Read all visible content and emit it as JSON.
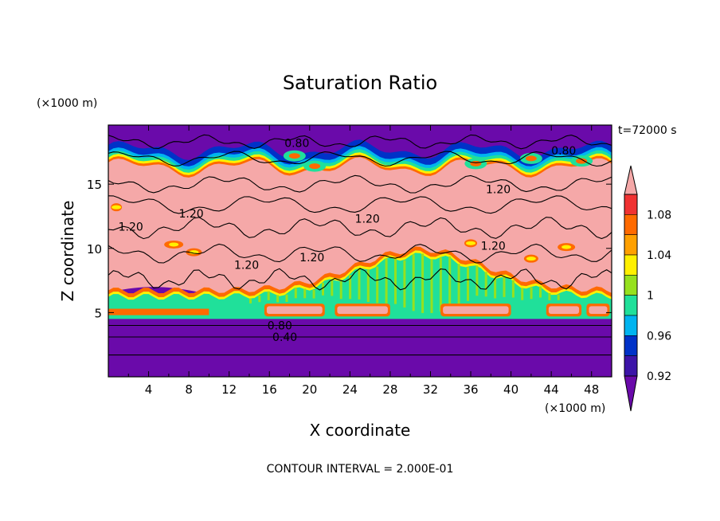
{
  "chart_data": {
    "type": "heatmap",
    "title": "Saturation Ratio",
    "xlabel": "X coordinate",
    "ylabel": "Z coordinate",
    "x_units": "(×1000 m)",
    "y_units": "(×1000 m)",
    "time_label": "t=72000 s",
    "footer": "CONTOUR INTERVAL = 2.000E-01",
    "xlim": [
      0,
      50
    ],
    "ylim": [
      0,
      19.6
    ],
    "x_ticks": [
      4,
      8,
      12,
      16,
      20,
      24,
      28,
      32,
      36,
      40,
      44,
      48
    ],
    "y_ticks": [
      5,
      10,
      15
    ],
    "colorbar": {
      "levels": [
        0.92,
        0.96,
        1,
        1.04,
        1.08
      ],
      "tick_labels": [
        "0.92",
        "0.96",
        "1",
        "1.04",
        "1.08"
      ],
      "bins": [
        {
          "range": [
            null,
            0.92
          ],
          "color": "#6a0aaa"
        },
        {
          "range": [
            0.92,
            0.94
          ],
          "color": "#3c14a8"
        },
        {
          "range": [
            0.94,
            0.96
          ],
          "color": "#0032c8"
        },
        {
          "range": [
            0.96,
            0.98
          ],
          "color": "#00b4f0"
        },
        {
          "range": [
            0.98,
            1.0
          ],
          "color": "#20e09a"
        },
        {
          "range": [
            1.0,
            1.02
          ],
          "color": "#96e11e"
        },
        {
          "range": [
            1.02,
            1.04
          ],
          "color": "#fff000"
        },
        {
          "range": [
            1.04,
            1.06
          ],
          "color": "#ffa000"
        },
        {
          "range": [
            1.06,
            1.08
          ],
          "color": "#ff6a00"
        },
        {
          "range": [
            1.08,
            1.1
          ],
          "color": "#f03232"
        },
        {
          "range": [
            1.1,
            null
          ],
          "color": "#f5a8a8"
        }
      ]
    },
    "contour_labels": [
      "0.80",
      "0.80",
      "1.20",
      "1.20",
      "1.20",
      "1.20",
      "1.20",
      "1.20",
      "1.20",
      "0.80",
      "0.40"
    ],
    "regions": {
      "upper_dry_layer_z": [
        17.2,
        19.6
      ],
      "supersaturated_layer_z": [
        6.5,
        16.0
      ],
      "cloud_top_z": [
        13.5,
        15.5
      ],
      "lower_dry_layer_z": [
        0,
        4.5
      ],
      "surface_contours": [
        {
          "z": 4.0,
          "value": 0.8
        },
        {
          "z": 3.1,
          "value": 0.4
        }
      ]
    }
  }
}
